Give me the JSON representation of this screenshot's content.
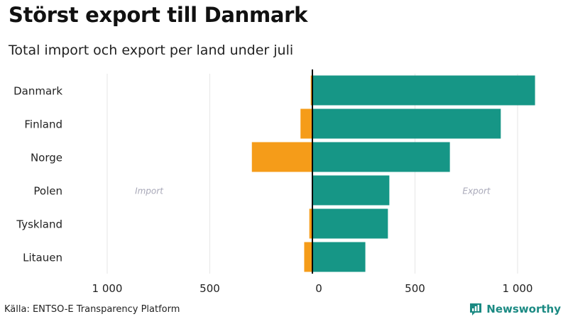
{
  "header": {
    "title": "Störst export till Danmark",
    "subtitle": "Total import och export per land under juli"
  },
  "footer": {
    "source": "Källa: ENTSO-E Transparency Platform",
    "brand": "Newsworthy"
  },
  "colors": {
    "import": "#f59c19",
    "export": "#169686",
    "grid": "#e6e6e6",
    "zero_line": "#000000",
    "annotation": "#a8a8b8",
    "brand": "#1b8a83"
  },
  "chart_data": {
    "type": "bar",
    "orientation": "horizontal",
    "diverging": true,
    "categories": [
      "Danmark",
      "Finland",
      "Norge",
      "Polen",
      "Tyskland",
      "Litauen"
    ],
    "series": [
      {
        "name": "Import",
        "values": [
          -8,
          -58,
          -295,
          -3,
          -15,
          -40
        ]
      },
      {
        "name": "Export",
        "values": [
          1085,
          918,
          670,
          375,
          368,
          258
        ]
      }
    ],
    "annotations": {
      "left": "Import",
      "right": "Export"
    },
    "xlim": [
      -1000,
      1000
    ],
    "xticks": [
      -1000,
      -500,
      0,
      500,
      1000
    ],
    "xtick_labels": [
      "1 000",
      "500",
      "0",
      "500",
      "1 000"
    ],
    "xlabel": "",
    "ylabel": "",
    "grid": true
  }
}
